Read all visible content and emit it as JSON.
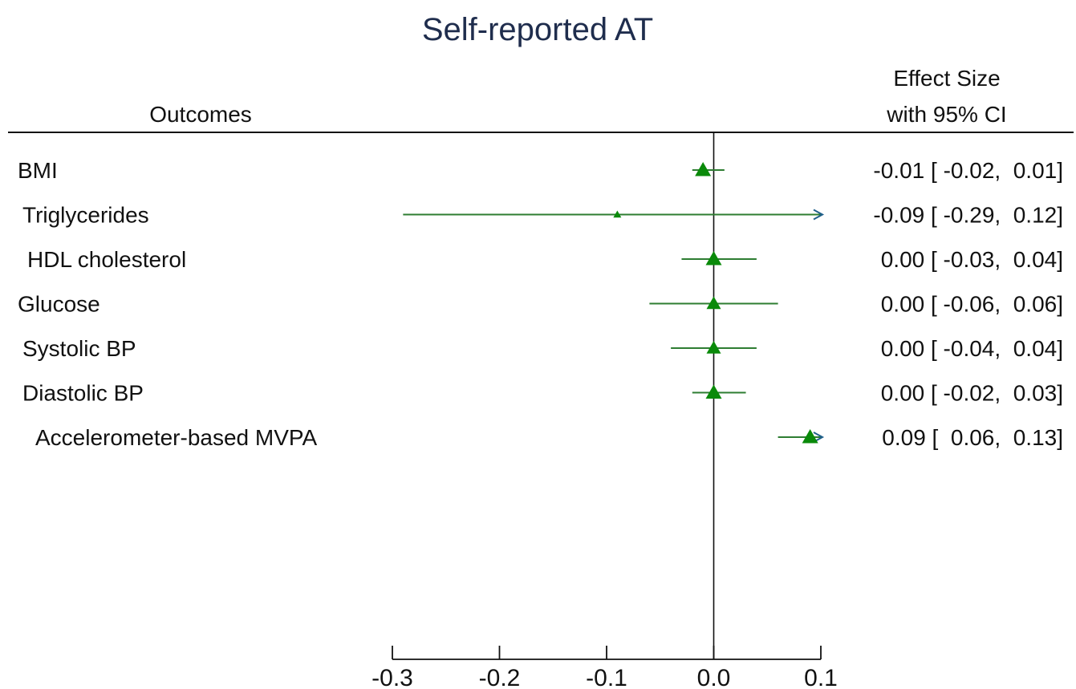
{
  "chart_data": {
    "type": "forest",
    "title": "Self-reported AT",
    "headers": {
      "left": "Outcomes",
      "right_line1": "Effect Size",
      "right_line2": "with 95% CI"
    },
    "xlim": [
      -0.3,
      0.1
    ],
    "xticks": [
      -0.3,
      -0.2,
      -0.1,
      0.0,
      0.1
    ],
    "xtick_labels": [
      "-0.3",
      "-0.2",
      "-0.1",
      "0.0",
      "0.1"
    ],
    "reference_line": 0,
    "colors": {
      "marker": "#0a8a0a",
      "ci_line": "#2e7d32",
      "arrow": "#1f5f8b",
      "title": "#1f2d4d"
    },
    "rows": [
      {
        "label": "BMI",
        "estimate": -0.01,
        "ci_low": -0.02,
        "ci_high": 0.01,
        "value_text": "-0.01 [ -0.02,  0.01]"
      },
      {
        "label": "Triglycerides",
        "estimate": -0.09,
        "ci_low": -0.29,
        "ci_high": 0.12,
        "value_text": "-0.09 [ -0.29,  0.12]"
      },
      {
        "label": "HDL cholesterol",
        "estimate": 0.0,
        "ci_low": -0.03,
        "ci_high": 0.04,
        "value_text": "0.00 [ -0.03,  0.04]"
      },
      {
        "label": "Glucose",
        "estimate": 0.0,
        "ci_low": -0.06,
        "ci_high": 0.06,
        "value_text": "0.00 [ -0.06,  0.06]"
      },
      {
        "label": "Systolic BP",
        "estimate": 0.0,
        "ci_low": -0.04,
        "ci_high": 0.04,
        "value_text": "0.00 [ -0.04,  0.04]"
      },
      {
        "label": "Diastolic BP",
        "estimate": 0.0,
        "ci_low": -0.02,
        "ci_high": 0.03,
        "value_text": "0.00 [ -0.02,  0.03]"
      },
      {
        "label": "Accelerometer-based MVPA",
        "estimate": 0.09,
        "ci_low": 0.06,
        "ci_high": 0.13,
        "value_text": "0.09 [  0.06,  0.13]"
      }
    ]
  }
}
